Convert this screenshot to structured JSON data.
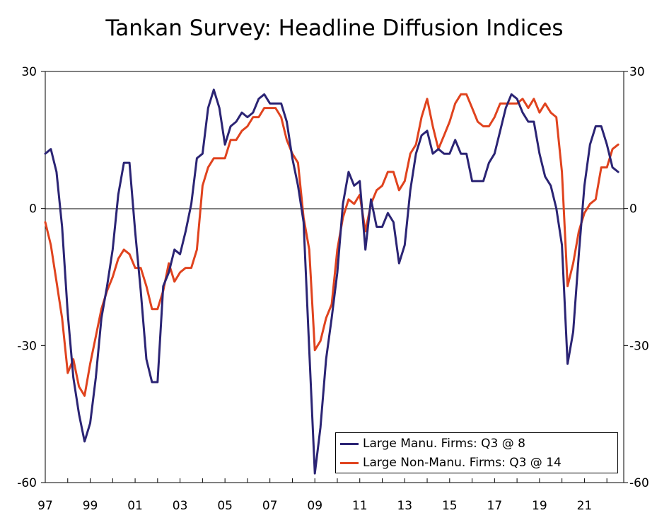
{
  "chart_data": {
    "type": "line",
    "title": "Tankan Survey: Headline Diffusion Indices",
    "xlabel": "",
    "ylabel": "",
    "x_tick_labels": [
      "97",
      "99",
      "01",
      "03",
      "05",
      "07",
      "09",
      "11",
      "13",
      "15",
      "17",
      "19",
      "21"
    ],
    "x_tick_years": [
      1997,
      1999,
      2001,
      2003,
      2005,
      2007,
      2009,
      2011,
      2013,
      2015,
      2017,
      2019,
      2021
    ],
    "xlim": [
      1997.0,
      2022.75
    ],
    "y_ticks": [
      30,
      0,
      -30,
      -60
    ],
    "y_tick_labels": [
      "30",
      "0",
      "-30",
      "-60"
    ],
    "ylim": [
      -60,
      30
    ],
    "zero_line": true,
    "grid": false,
    "legend_position": "bottom-right",
    "x": [
      1997.0,
      1997.25,
      1997.5,
      1997.75,
      1998.0,
      1998.25,
      1998.5,
      1998.75,
      1999.0,
      1999.25,
      1999.5,
      1999.75,
      2000.0,
      2000.25,
      2000.5,
      2000.75,
      2001.0,
      2001.25,
      2001.5,
      2001.75,
      2002.0,
      2002.25,
      2002.5,
      2002.75,
      2003.0,
      2003.25,
      2003.5,
      2003.75,
      2004.0,
      2004.25,
      2004.5,
      2004.75,
      2005.0,
      2005.25,
      2005.5,
      2005.75,
      2006.0,
      2006.25,
      2006.5,
      2006.75,
      2007.0,
      2007.25,
      2007.5,
      2007.75,
      2008.0,
      2008.25,
      2008.5,
      2008.75,
      2009.0,
      2009.25,
      2009.5,
      2009.75,
      2010.0,
      2010.25,
      2010.5,
      2010.75,
      2011.0,
      2011.25,
      2011.5,
      2011.75,
      2012.0,
      2012.25,
      2012.5,
      2012.75,
      2013.0,
      2013.25,
      2013.5,
      2013.75,
      2014.0,
      2014.25,
      2014.5,
      2014.75,
      2015.0,
      2015.25,
      2015.5,
      2015.75,
      2016.0,
      2016.25,
      2016.5,
      2016.75,
      2017.0,
      2017.25,
      2017.5,
      2017.75,
      2018.0,
      2018.25,
      2018.5,
      2018.75,
      2019.0,
      2019.25,
      2019.5,
      2019.75,
      2020.0,
      2020.25,
      2020.5,
      2020.75,
      2021.0,
      2021.25,
      2021.5,
      2021.75,
      2022.0,
      2022.25,
      2022.5
    ],
    "series": [
      {
        "name": "Large Manu. Firms: Q3 @ 8",
        "color": "#2b2474",
        "values": [
          12,
          13,
          8,
          -4,
          -23,
          -37,
          -45,
          -51,
          -47,
          -37,
          -24,
          -17,
          -9,
          3,
          10,
          10,
          -5,
          -18,
          -33,
          -38,
          -38,
          -17,
          -14,
          -9,
          -10,
          -5,
          1,
          11,
          12,
          22,
          26,
          22,
          14,
          18,
          19,
          21,
          20,
          21,
          24,
          25,
          23,
          23,
          23,
          19,
          11,
          5,
          -3,
          -31,
          -58,
          -48,
          -33,
          -24,
          -14,
          1,
          8,
          5,
          6,
          -9,
          2,
          -4,
          -4,
          -1,
          -3,
          -12,
          -8,
          4,
          12,
          16,
          17,
          12,
          13,
          12,
          12,
          15,
          12,
          12,
          6,
          6,
          6,
          10,
          12,
          17,
          22,
          25,
          24,
          21,
          19,
          19,
          12,
          7,
          5,
          0,
          -8,
          -34,
          -27,
          -10,
          5,
          14,
          18,
          18,
          14,
          9,
          8
        ]
      },
      {
        "name": "Large Non-Manu. Firms: Q3 @ 14",
        "color": "#e0431e",
        "values": [
          -3,
          -8,
          -16,
          -24,
          -36,
          -33,
          -39,
          -41,
          -34,
          -28,
          -22,
          -18,
          -15,
          -11,
          -9,
          -10,
          -13,
          -13,
          -17,
          -22,
          -22,
          -18,
          -12,
          -16,
          -14,
          -13,
          -13,
          -9,
          5,
          9,
          11,
          11,
          11,
          15,
          15,
          17,
          18,
          20,
          20,
          22,
          22,
          22,
          20,
          15,
          12,
          10,
          -2,
          -9,
          -31,
          -29,
          -24,
          -21,
          -9,
          -2,
          2,
          1,
          3,
          -5,
          1,
          4,
          5,
          8,
          8,
          4,
          6,
          12,
          14,
          20,
          24,
          18,
          13,
          16,
          19,
          23,
          25,
          25,
          22,
          19,
          18,
          18,
          20,
          23,
          23,
          23,
          23,
          24,
          22,
          24,
          21,
          23,
          21,
          20,
          8,
          -17,
          -12,
          -5,
          -1,
          1,
          2,
          9,
          9,
          13,
          14
        ]
      }
    ]
  },
  "legend": {
    "items": [
      {
        "label": "Large Manu. Firms: Q3 @ 8",
        "color": "#2b2474"
      },
      {
        "label": "Large Non-Manu. Firms: Q3 @ 14",
        "color": "#e0431e"
      }
    ]
  }
}
